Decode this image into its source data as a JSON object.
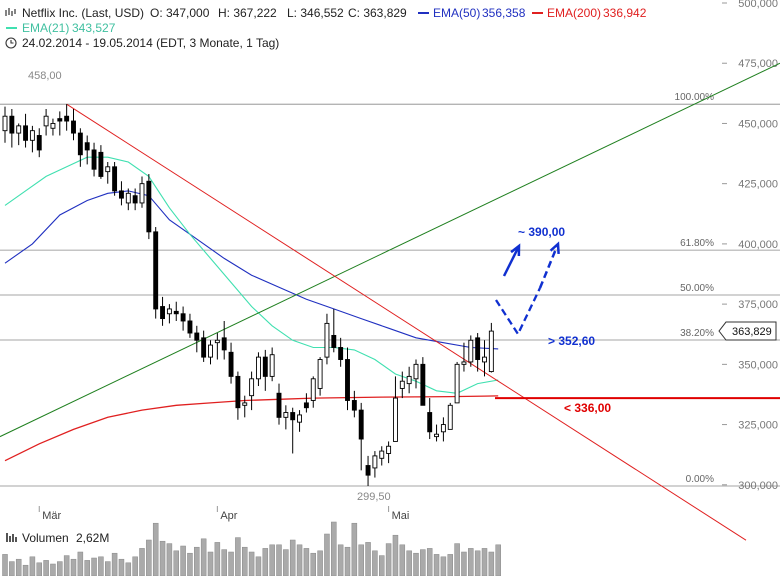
{
  "header": {
    "title": "Netflix Inc. (Last, USD)",
    "open": "O: 347,000",
    "high": "H: 367,222",
    "low": "L: 346,552",
    "close": "C: 363,829",
    "ema50_label": "EMA(50)",
    "ema50_value": "356,358",
    "ema200_label": "EMA(200)",
    "ema200_value": "336,942",
    "ema21_label": "EMA(21)",
    "ema21_value": "343,527",
    "date_range": "24.02.2014 - 19.05.2014 (EDT, 3 Monate, 1 Tag)"
  },
  "volume": {
    "label": "Volumen",
    "value": "2,62M"
  },
  "annotations": {
    "high_label": "458,00",
    "low_label": "299,50",
    "last_price": "363,829",
    "target_up": "~ 390,00",
    "target_mid": "> 352,60",
    "target_low": "< 336,00"
  },
  "fib_levels": [
    {
      "label": "100.00%",
      "price": 458.0
    },
    {
      "label": "61.80%",
      "price": 397.4
    },
    {
      "label": "50.00%",
      "price": 378.8
    },
    {
      "label": "38.20%",
      "price": 360.1
    },
    {
      "label": "0.00%",
      "price": 299.5
    }
  ],
  "colors": {
    "candle": "#000000",
    "ema21": "#40e0b0",
    "ema50": "#2030c0",
    "ema200": "#e02020",
    "uptrend": "#208020",
    "downtrend": "#e02020",
    "target": "#1030d0",
    "support": "#e00000",
    "fib": "#888888",
    "volume": "#aaaaaa"
  },
  "chart_data": {
    "type": "candlestick",
    "x_axis_labels": [
      "Mär",
      "Apr",
      "Mai"
    ],
    "ylim": [
      293,
      503
    ],
    "y_ticks": [
      {
        "value": 300,
        "label": "300,000"
      },
      {
        "value": 325,
        "label": "325,000"
      },
      {
        "value": 350,
        "label": "350,000"
      },
      {
        "value": 375,
        "label": "375,000"
      },
      {
        "value": 400,
        "label": "400,000"
      },
      {
        "value": 425,
        "label": "425,000"
      },
      {
        "value": 450,
        "label": "450,000"
      },
      {
        "value": 475,
        "label": "475,000"
      },
      {
        "value": 500,
        "label": "500,000"
      }
    ],
    "candles": [
      {
        "o": 447,
        "h": 457,
        "l": 442,
        "c": 453
      },
      {
        "o": 453,
        "h": 456,
        "l": 440,
        "c": 446
      },
      {
        "o": 446,
        "h": 450,
        "l": 441,
        "c": 449
      },
      {
        "o": 449,
        "h": 454,
        "l": 440,
        "c": 443
      },
      {
        "o": 443,
        "h": 449,
        "l": 438,
        "c": 447
      },
      {
        "o": 445,
        "h": 448,
        "l": 436,
        "c": 439
      },
      {
        "o": 449,
        "h": 456,
        "l": 445,
        "c": 453
      },
      {
        "o": 448,
        "h": 452,
        "l": 445,
        "c": 450
      },
      {
        "o": 452,
        "h": 455,
        "l": 445,
        "c": 451
      },
      {
        "o": 453,
        "h": 458,
        "l": 447,
        "c": 451
      },
      {
        "o": 451,
        "h": 456,
        "l": 443,
        "c": 446
      },
      {
        "o": 446,
        "h": 448,
        "l": 432,
        "c": 437
      },
      {
        "o": 442,
        "h": 445,
        "l": 433,
        "c": 439
      },
      {
        "o": 439,
        "h": 442,
        "l": 428,
        "c": 431
      },
      {
        "o": 438,
        "h": 441,
        "l": 427,
        "c": 428
      },
      {
        "o": 430,
        "h": 434,
        "l": 425,
        "c": 432
      },
      {
        "o": 432,
        "h": 434,
        "l": 420,
        "c": 422
      },
      {
        "o": 422,
        "h": 426,
        "l": 416,
        "c": 419
      },
      {
        "o": 417,
        "h": 423,
        "l": 414,
        "c": 421
      },
      {
        "o": 420,
        "h": 423,
        "l": 414,
        "c": 417
      },
      {
        "o": 417,
        "h": 428,
        "l": 415,
        "c": 425
      },
      {
        "o": 426,
        "h": 429,
        "l": 402,
        "c": 405
      },
      {
        "o": 405,
        "h": 407,
        "l": 369,
        "c": 373
      },
      {
        "o": 374,
        "h": 378,
        "l": 366,
        "c": 369
      },
      {
        "o": 371,
        "h": 375,
        "l": 367,
        "c": 373
      },
      {
        "o": 372,
        "h": 376,
        "l": 368,
        "c": 371
      },
      {
        "o": 371,
        "h": 374,
        "l": 364,
        "c": 368
      },
      {
        "o": 368,
        "h": 371,
        "l": 361,
        "c": 363
      },
      {
        "o": 363,
        "h": 366,
        "l": 355,
        "c": 360
      },
      {
        "o": 361,
        "h": 364,
        "l": 351,
        "c": 353
      },
      {
        "o": 353,
        "h": 360,
        "l": 350,
        "c": 358
      },
      {
        "o": 359,
        "h": 363,
        "l": 352,
        "c": 360
      },
      {
        "o": 361,
        "h": 368,
        "l": 352,
        "c": 356
      },
      {
        "o": 355,
        "h": 359,
        "l": 342,
        "c": 345
      },
      {
        "o": 345,
        "h": 347,
        "l": 327,
        "c": 332
      },
      {
        "o": 333,
        "h": 337,
        "l": 328,
        "c": 334
      },
      {
        "o": 337,
        "h": 347,
        "l": 331,
        "c": 344
      },
      {
        "o": 344,
        "h": 355,
        "l": 341,
        "c": 353
      },
      {
        "o": 353,
        "h": 356,
        "l": 339,
        "c": 345
      },
      {
        "o": 345,
        "h": 357,
        "l": 343,
        "c": 354
      },
      {
        "o": 338,
        "h": 342,
        "l": 325,
        "c": 328
      },
      {
        "o": 328,
        "h": 333,
        "l": 323,
        "c": 330
      },
      {
        "o": 330,
        "h": 332,
        "l": 313,
        "c": 327
      },
      {
        "o": 326,
        "h": 331,
        "l": 322,
        "c": 329
      },
      {
        "o": 334,
        "h": 338,
        "l": 330,
        "c": 332
      },
      {
        "o": 335,
        "h": 345,
        "l": 332,
        "c": 344
      },
      {
        "o": 340,
        "h": 353,
        "l": 337,
        "c": 352
      },
      {
        "o": 353,
        "h": 371,
        "l": 350,
        "c": 367
      },
      {
        "o": 362,
        "h": 373,
        "l": 355,
        "c": 357
      },
      {
        "o": 357,
        "h": 361,
        "l": 349,
        "c": 352
      },
      {
        "o": 352,
        "h": 357,
        "l": 331,
        "c": 335
      },
      {
        "o": 335,
        "h": 339,
        "l": 328,
        "c": 331
      },
      {
        "o": 331,
        "h": 334,
        "l": 306,
        "c": 319
      },
      {
        "o": 308,
        "h": 312,
        "l": 299.5,
        "c": 304
      },
      {
        "o": 307,
        "h": 314,
        "l": 303,
        "c": 312
      },
      {
        "o": 311,
        "h": 316,
        "l": 308,
        "c": 314
      },
      {
        "o": 313,
        "h": 318,
        "l": 309,
        "c": 316
      },
      {
        "o": 318,
        "h": 345,
        "l": 318,
        "c": 336
      },
      {
        "o": 340,
        "h": 347,
        "l": 336,
        "c": 343
      },
      {
        "o": 342,
        "h": 349,
        "l": 338,
        "c": 345
      },
      {
        "o": 344,
        "h": 352,
        "l": 340,
        "c": 350
      },
      {
        "o": 350,
        "h": 353,
        "l": 334,
        "c": 333
      },
      {
        "o": 330,
        "h": 336,
        "l": 319,
        "c": 322
      },
      {
        "o": 320,
        "h": 325,
        "l": 318,
        "c": 321
      },
      {
        "o": 322,
        "h": 328,
        "l": 318,
        "c": 325
      },
      {
        "o": 323,
        "h": 334,
        "l": 323,
        "c": 333
      },
      {
        "o": 334,
        "h": 351,
        "l": 334,
        "c": 350
      },
      {
        "o": 350,
        "h": 359,
        "l": 347,
        "c": 351
      },
      {
        "o": 351,
        "h": 362,
        "l": 349,
        "c": 360
      },
      {
        "o": 361,
        "h": 363,
        "l": 347,
        "c": 352
      },
      {
        "o": 351,
        "h": 360,
        "l": 345,
        "c": 353
      },
      {
        "o": 347,
        "h": 367.2,
        "l": 346.6,
        "c": 363.8
      }
    ],
    "volume_values": [
      1.8,
      1.2,
      1.4,
      0.9,
      1.6,
      1.1,
      1.3,
      1.0,
      1.2,
      1.7,
      1.4,
      2.0,
      1.3,
      1.5,
      1.6,
      1.2,
      1.9,
      1.4,
      1.1,
      1.6,
      2.3,
      3.0,
      4.4,
      2.9,
      2.7,
      2.1,
      2.5,
      1.9,
      2.4,
      3.1,
      2.0,
      2.8,
      2.2,
      2.0,
      3.2,
      2.4,
      2.0,
      1.6,
      2.3,
      2.6,
      2.6,
      2.2,
      3.0,
      2.6,
      2.3,
      1.9,
      2.1,
      3.5,
      4.5,
      2.6,
      2.4,
      4.4,
      2.6,
      2.8,
      2.1,
      1.7,
      2.7,
      3.4,
      2.6,
      2.1,
      1.9,
      2.2,
      2.3,
      1.8,
      1.6,
      1.8,
      2.7,
      2.0,
      2.3,
      2.1,
      2.3,
      2.0,
      2.6
    ],
    "ema21": [
      [
        0,
        416
      ],
      [
        3,
        422
      ],
      [
        6,
        428
      ],
      [
        9,
        432
      ],
      [
        12,
        436
      ],
      [
        15,
        436
      ],
      [
        18,
        434
      ],
      [
        21,
        428
      ],
      [
        24,
        415
      ],
      [
        27,
        404
      ],
      [
        30,
        394
      ],
      [
        33,
        384
      ],
      [
        36,
        374
      ],
      [
        39,
        366
      ],
      [
        42,
        360
      ],
      [
        45,
        357
      ],
      [
        48,
        357
      ],
      [
        51,
        356
      ],
      [
        54,
        352
      ],
      [
        57,
        346
      ],
      [
        60,
        343
      ],
      [
        63,
        339
      ],
      [
        66,
        338
      ],
      [
        69,
        342
      ],
      [
        72,
        343.5
      ]
    ],
    "ema50": [
      [
        0,
        392
      ],
      [
        4,
        400
      ],
      [
        8,
        412
      ],
      [
        12,
        418
      ],
      [
        15,
        421
      ],
      [
        18,
        422
      ],
      [
        21,
        420
      ],
      [
        24,
        410
      ],
      [
        28,
        402
      ],
      [
        32,
        394
      ],
      [
        36,
        387
      ],
      [
        40,
        382
      ],
      [
        44,
        377
      ],
      [
        48,
        373
      ],
      [
        52,
        369
      ],
      [
        56,
        365
      ],
      [
        60,
        361
      ],
      [
        64,
        359
      ],
      [
        68,
        357
      ],
      [
        72,
        356.4
      ]
    ],
    "ema200": [
      [
        0,
        310
      ],
      [
        5,
        317
      ],
      [
        10,
        323
      ],
      [
        15,
        328
      ],
      [
        20,
        331
      ],
      [
        25,
        333
      ],
      [
        30,
        334
      ],
      [
        35,
        335
      ],
      [
        40,
        335.5
      ],
      [
        45,
        336
      ],
      [
        50,
        336.2
      ],
      [
        55,
        336.4
      ],
      [
        60,
        336.5
      ],
      [
        65,
        336.6
      ],
      [
        70,
        336.8
      ],
      [
        72,
        336.9
      ]
    ]
  }
}
